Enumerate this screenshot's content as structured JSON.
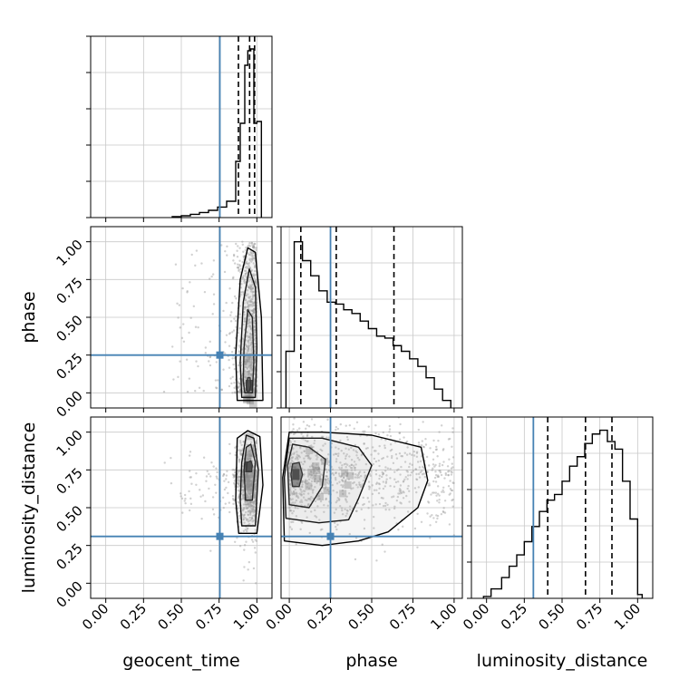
{
  "figure": {
    "parameters": [
      "geocent_time",
      "phase",
      "luminosity_distance"
    ],
    "colors": {
      "truth": "#4682b4",
      "grid": "#c8c8c8",
      "line": "#000000",
      "points": "#9a9a9a"
    }
  },
  "chart_data": [
    {
      "type": "histogram",
      "panel": "geocent_time",
      "xlabel": "",
      "xlim": [
        -0.1,
        1.1
      ],
      "xticks": [
        0.0,
        0.25,
        0.5,
        0.75,
        1.0
      ],
      "bin_edges": [
        0.44,
        0.5,
        0.56,
        0.62,
        0.68,
        0.74,
        0.8,
        0.86,
        0.89,
        0.92,
        0.94,
        0.96,
        0.98,
        1.0,
        1.03
      ],
      "counts": [
        0.005,
        0.01,
        0.018,
        0.028,
        0.04,
        0.058,
        0.09,
        0.31,
        0.52,
        0.84,
        0.92,
        0.93,
        0.52,
        0.53
      ],
      "ylim": [
        0,
        1.0
      ],
      "quantiles": [
        0.878,
        0.952,
        0.985
      ],
      "truth": 0.755,
      "grid": true
    },
    {
      "type": "histogram",
      "panel": "phase",
      "xlabel": "phase",
      "xlim": [
        -0.05,
        1.05
      ],
      "xticks": [
        0.0,
        0.25,
        0.5,
        0.75,
        1.0
      ],
      "bin_edges": [
        -0.02,
        0.03,
        0.08,
        0.13,
        0.18,
        0.23,
        0.28,
        0.33,
        0.38,
        0.43,
        0.48,
        0.53,
        0.58,
        0.63,
        0.68,
        0.73,
        0.78,
        0.83,
        0.88,
        0.93,
        0.98
      ],
      "counts": [
        0.3,
        0.88,
        0.78,
        0.7,
        0.62,
        0.56,
        0.55,
        0.52,
        0.5,
        0.46,
        0.42,
        0.38,
        0.37,
        0.33,
        0.3,
        0.26,
        0.22,
        0.16,
        0.1,
        0.04
      ],
      "ylim": [
        0,
        0.96
      ],
      "quantiles": [
        0.07,
        0.285,
        0.635
      ],
      "truth": 0.25,
      "grid": true
    },
    {
      "type": "histogram",
      "panel": "luminosity_distance",
      "xlabel": "luminosity_distance",
      "xlim": [
        -0.1,
        1.1
      ],
      "xticks": [
        0.0,
        0.25,
        0.5,
        0.75,
        1.0
      ],
      "yticks": [
        0.0,
        0.25,
        0.5,
        0.75,
        1.0
      ],
      "bin_edges": [
        -0.02,
        0.03,
        0.1,
        0.15,
        0.2,
        0.25,
        0.3,
        0.35,
        0.4,
        0.45,
        0.5,
        0.55,
        0.6,
        0.65,
        0.7,
        0.75,
        0.8,
        0.85,
        0.9,
        0.95,
        1.0,
        1.03
      ],
      "counts": [
        0.01,
        0.05,
        0.11,
        0.17,
        0.23,
        0.3,
        0.38,
        0.46,
        0.52,
        0.55,
        0.62,
        0.7,
        0.75,
        0.82,
        0.87,
        0.89,
        0.83,
        0.79,
        0.62,
        0.42,
        0.02
      ],
      "ylim": [
        0,
        0.96
      ],
      "quantiles": [
        0.405,
        0.655,
        0.83
      ],
      "truth": 0.31,
      "grid": true
    },
    {
      "type": "scatter",
      "panel": "geocent_time vs phase",
      "xlabel": "",
      "ylabel": "phase",
      "xlim": [
        -0.1,
        1.1
      ],
      "ylim": [
        -0.1,
        1.1
      ],
      "xticks": [
        0.0,
        0.25,
        0.5,
        0.75,
        1.0
      ],
      "yticks": [
        0.0,
        0.25,
        0.5,
        0.75,
        1.0
      ],
      "peak": {
        "x": 0.95,
        "y": 0.05
      },
      "contours": [
        [
          [
            0.935,
            0.01
          ],
          [
            0.95,
            0.01
          ],
          [
            0.96,
            0.05
          ],
          [
            0.955,
            0.1
          ],
          [
            0.94,
            0.1
          ],
          [
            0.93,
            0.05
          ]
        ],
        [
          [
            0.92,
            0.0
          ],
          [
            0.97,
            0.0
          ],
          [
            0.98,
            0.2
          ],
          [
            0.97,
            0.5
          ],
          [
            0.94,
            0.55
          ],
          [
            0.915,
            0.3
          ],
          [
            0.91,
            0.08
          ]
        ],
        [
          [
            0.9,
            -0.03
          ],
          [
            0.99,
            -0.03
          ],
          [
            1.0,
            0.3
          ],
          [
            0.99,
            0.7
          ],
          [
            0.95,
            0.82
          ],
          [
            0.91,
            0.6
          ],
          [
            0.89,
            0.2
          ]
        ],
        [
          [
            0.87,
            -0.05
          ],
          [
            1.04,
            -0.05
          ],
          [
            1.03,
            0.5
          ],
          [
            0.99,
            0.93
          ],
          [
            0.94,
            0.96
          ],
          [
            0.89,
            0.75
          ],
          [
            0.86,
            0.25
          ]
        ]
      ],
      "truth": {
        "x": 0.755,
        "y": 0.25
      },
      "grid": true
    },
    {
      "type": "scatter",
      "panel": "geocent_time vs luminosity_distance",
      "xlabel": "geocent_time",
      "ylabel": "luminosity_distance",
      "xlim": [
        -0.1,
        1.1
      ],
      "ylim": [
        -0.1,
        1.1
      ],
      "xticks": [
        0.0,
        0.25,
        0.5,
        0.75,
        1.0
      ],
      "yticks": [
        0.0,
        0.25,
        0.5,
        0.75,
        1.0
      ],
      "peak": {
        "x": 0.945,
        "y": 0.77
      },
      "contours": [
        [
          [
            0.93,
            0.74
          ],
          [
            0.965,
            0.74
          ],
          [
            0.97,
            0.78
          ],
          [
            0.96,
            0.81
          ],
          [
            0.935,
            0.8
          ]
        ],
        [
          [
            0.925,
            0.55
          ],
          [
            0.97,
            0.55
          ],
          [
            0.99,
            0.8
          ],
          [
            0.96,
            0.92
          ],
          [
            0.93,
            0.9
          ],
          [
            0.915,
            0.75
          ]
        ],
        [
          [
            0.9,
            0.38
          ],
          [
            0.99,
            0.38
          ],
          [
            1.01,
            0.75
          ],
          [
            0.98,
            0.96
          ],
          [
            0.93,
            0.98
          ],
          [
            0.9,
            0.8
          ],
          [
            0.89,
            0.55
          ]
        ],
        [
          [
            0.88,
            0.33
          ],
          [
            1.0,
            0.33
          ],
          [
            1.04,
            0.65
          ],
          [
            1.02,
            0.97
          ],
          [
            0.94,
            1.01
          ],
          [
            0.87,
            0.96
          ],
          [
            0.86,
            0.55
          ]
        ]
      ],
      "truth": {
        "x": 0.755,
        "y": 0.31
      },
      "grid": true
    },
    {
      "type": "scatter",
      "panel": "phase vs luminosity_distance",
      "xlabel": "phase",
      "ylabel": "",
      "xlim": [
        -0.05,
        1.05
      ],
      "ylim": [
        -0.1,
        1.1
      ],
      "xticks": [
        0.0,
        0.25,
        0.5,
        0.75,
        1.0
      ],
      "peak": {
        "x": 0.04,
        "y": 0.72
      },
      "contours": [
        [
          [
            0.02,
            0.64
          ],
          [
            0.06,
            0.64
          ],
          [
            0.08,
            0.72
          ],
          [
            0.06,
            0.8
          ],
          [
            0.02,
            0.79
          ],
          [
            0.01,
            0.72
          ]
        ],
        [
          [
            0.0,
            0.52
          ],
          [
            0.12,
            0.5
          ],
          [
            0.2,
            0.64
          ],
          [
            0.22,
            0.82
          ],
          [
            0.12,
            0.9
          ],
          [
            0.02,
            0.92
          ],
          [
            -0.01,
            0.78
          ]
        ],
        [
          [
            -0.02,
            0.43
          ],
          [
            0.18,
            0.4
          ],
          [
            0.36,
            0.42
          ],
          [
            0.42,
            0.56
          ],
          [
            0.5,
            0.78
          ],
          [
            0.42,
            0.9
          ],
          [
            0.2,
            0.96
          ],
          [
            0.0,
            0.96
          ],
          [
            -0.03,
            0.7
          ]
        ],
        [
          [
            -0.03,
            0.28
          ],
          [
            0.2,
            0.25
          ],
          [
            0.42,
            0.28
          ],
          [
            0.6,
            0.34
          ],
          [
            0.78,
            0.5
          ],
          [
            0.84,
            0.68
          ],
          [
            0.8,
            0.9
          ],
          [
            0.5,
            0.98
          ],
          [
            0.2,
            1.0
          ],
          [
            0.0,
            1.0
          ],
          [
            -0.04,
            0.7
          ]
        ]
      ],
      "truth": {
        "x": 0.25,
        "y": 0.31
      },
      "grid": true
    }
  ]
}
